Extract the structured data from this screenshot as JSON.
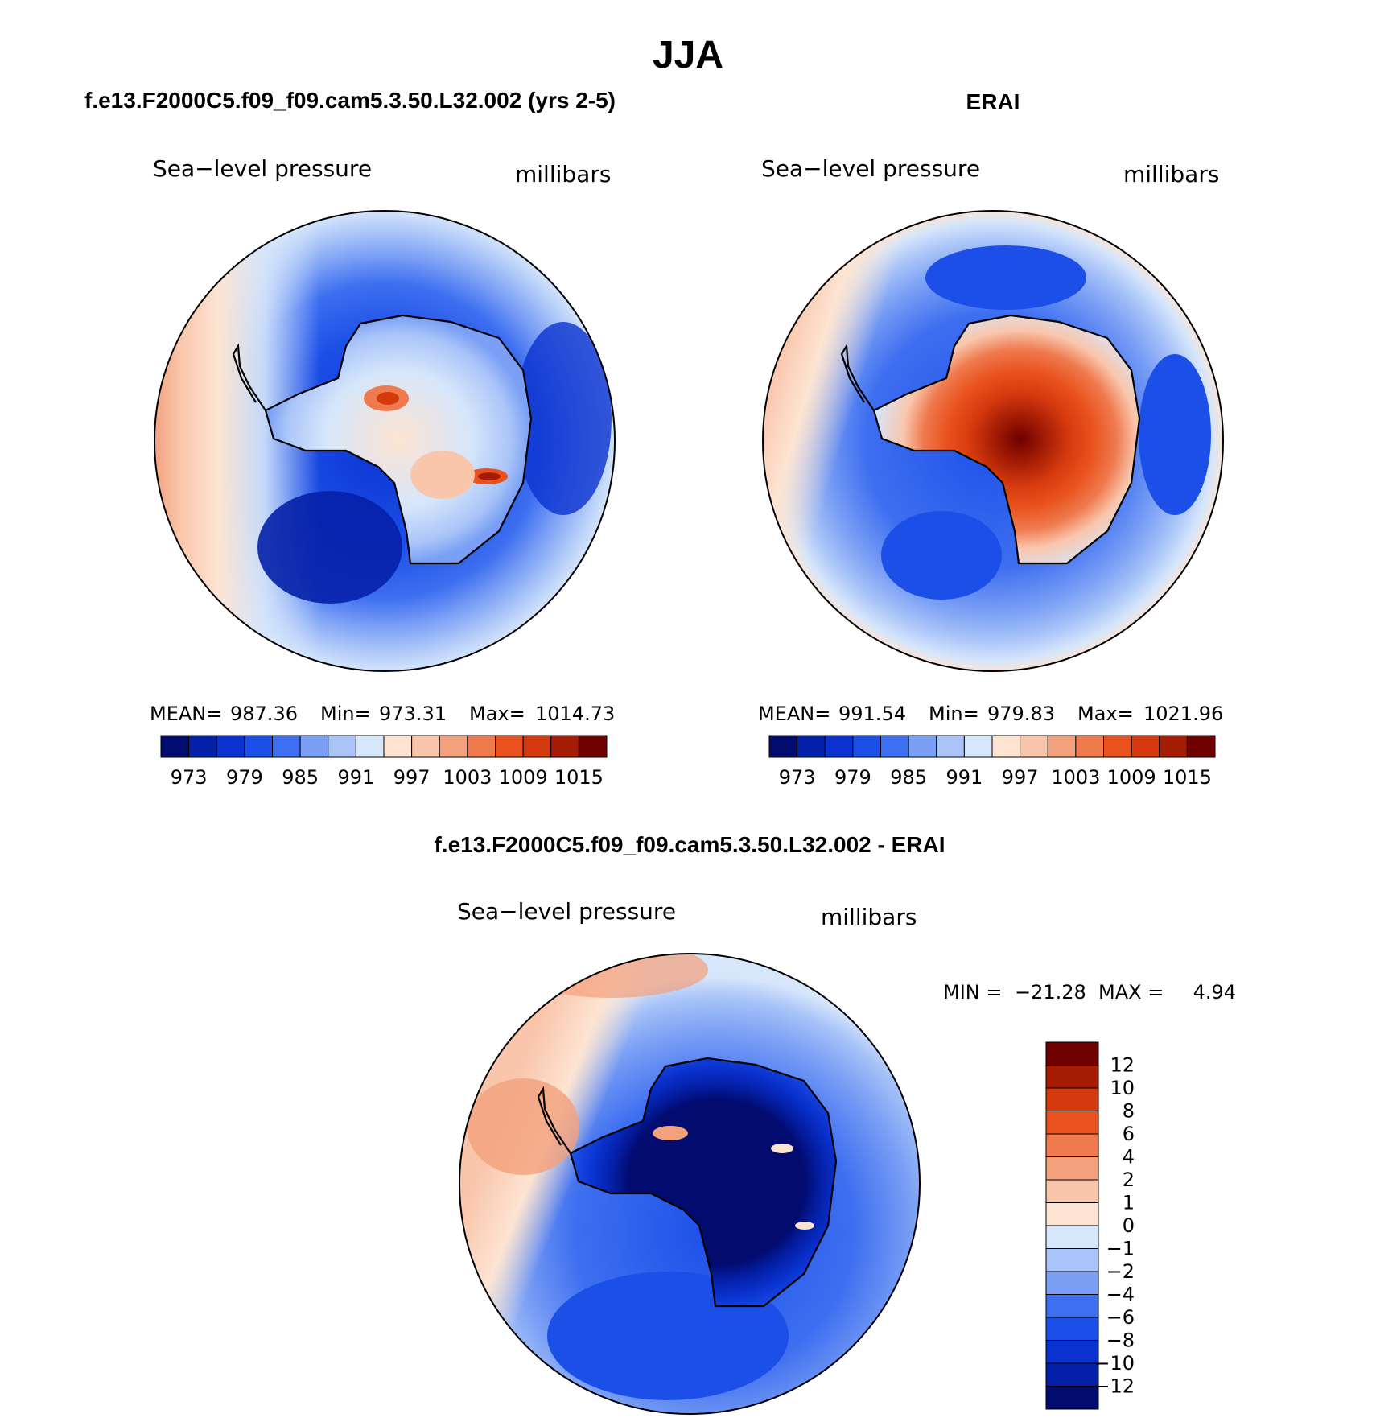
{
  "page_title": "JJA",
  "chart_data": [
    {
      "type": "heatmap",
      "projection": "south-polar-stereographic",
      "title": "f.e13.F2000C5.f09_f09.cam5.3.50.L32.002 (yrs 2-5)",
      "variable": "Sea−level pressure",
      "units": "millibars",
      "stats": {
        "mean_label": "MEAN=",
        "mean": "987.36",
        "min_label": "Min=",
        "min": "973.31",
        "max_label": "Max=",
        "max": "1014.73"
      },
      "colorbar_ticks": [
        "973",
        "979",
        "985",
        "991",
        "997",
        "1003",
        "1009",
        "1015"
      ],
      "colorbar_colors": [
        "#020b6e",
        "#0420a8",
        "#0a32cf",
        "#1c4fe8",
        "#3e6ff0",
        "#7a9ff5",
        "#a9c4f8",
        "#d6e6fb",
        "#fde4d2",
        "#f9c6ac",
        "#f3a07c",
        "#ef7a4e",
        "#e9521e",
        "#d53a0e",
        "#a61d05",
        "#6e0000"
      ],
      "value_range": [
        973.31,
        1014.73
      ]
    },
    {
      "type": "heatmap",
      "projection": "south-polar-stereographic",
      "title": "ERAI",
      "variable": "Sea−level pressure",
      "units": "millibars",
      "stats": {
        "mean_label": "MEAN=",
        "mean": "991.54",
        "min_label": "Min=",
        "min": "979.83",
        "max_label": "Max=",
        "max": "1021.96"
      },
      "colorbar_ticks": [
        "973",
        "979",
        "985",
        "991",
        "997",
        "1003",
        "1009",
        "1015"
      ],
      "colorbar_colors": [
        "#020b6e",
        "#0420a8",
        "#0a32cf",
        "#1c4fe8",
        "#3e6ff0",
        "#7a9ff5",
        "#a9c4f8",
        "#d6e6fb",
        "#fde4d2",
        "#f9c6ac",
        "#f3a07c",
        "#ef7a4e",
        "#e9521e",
        "#d53a0e",
        "#a61d05",
        "#6e0000"
      ],
      "value_range": [
        979.83,
        1021.96
      ]
    },
    {
      "type": "heatmap",
      "projection": "south-polar-stereographic",
      "title": "f.e13.F2000C5.f09_f09.cam5.3.50.L32.002 - ERAI",
      "variable": "Sea−level pressure",
      "units": "millibars",
      "stats": {
        "min_label": "MIN =",
        "min": "−21.28",
        "max_label": "MAX =",
        "max": "4.94"
      },
      "colorbar_ticks": [
        "12",
        "10",
        "8",
        "6",
        "4",
        "2",
        "1",
        "0",
        "−1",
        "−2",
        "−4",
        "−6",
        "−8",
        "−10",
        "−12"
      ],
      "colorbar_colors": [
        "#6e0000",
        "#a61d05",
        "#d53a0e",
        "#e9521e",
        "#ef7a4e",
        "#f3a07c",
        "#f9c6ac",
        "#fde4d2",
        "#d6e6fb",
        "#a9c4f8",
        "#7a9ff5",
        "#3e6ff0",
        "#1c4fe8",
        "#0a32cf",
        "#0420a8",
        "#020b6e"
      ],
      "value_range": [
        -21.28,
        4.94
      ]
    }
  ]
}
